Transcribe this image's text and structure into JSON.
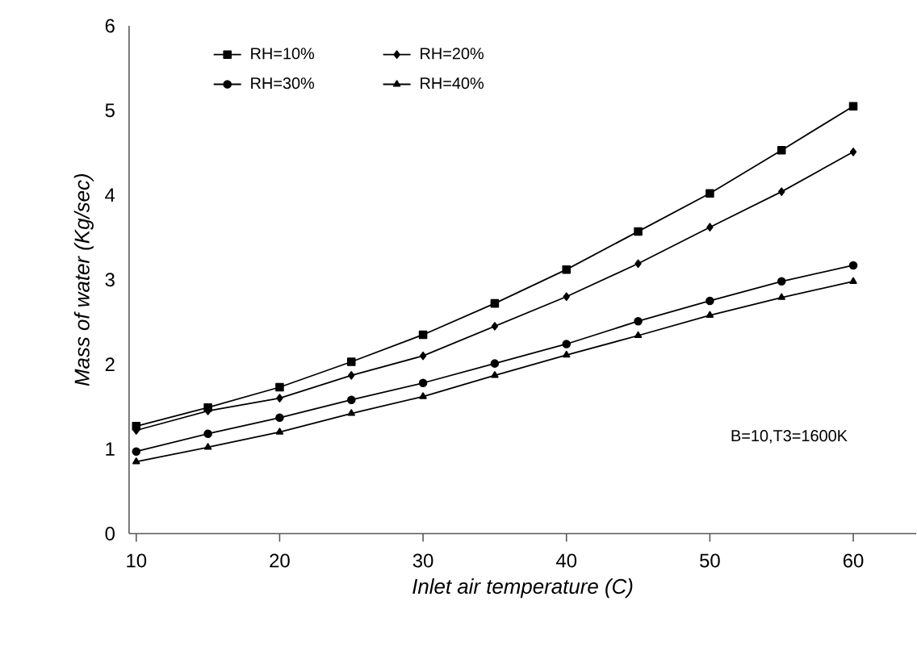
{
  "chart_data": {
    "type": "line",
    "xlabel": "Inlet air temperature (C)",
    "ylabel": "Mass of water (Kg/sec)",
    "x": [
      10,
      15,
      20,
      25,
      30,
      35,
      40,
      45,
      50,
      55,
      60
    ],
    "series": [
      {
        "name": "RH=10%",
        "color": "#000000",
        "marker": "square",
        "values": [
          1.27,
          1.49,
          1.73,
          2.03,
          2.35,
          2.72,
          3.12,
          3.57,
          4.02,
          4.53,
          5.05
        ]
      },
      {
        "name": "RH=20%",
        "color": "#000000",
        "marker": "diamond",
        "values": [
          1.22,
          1.45,
          1.6,
          1.87,
          2.1,
          2.45,
          2.8,
          3.19,
          3.62,
          4.04,
          4.51
        ]
      },
      {
        "name": "RH=30%",
        "color": "#000000",
        "marker": "circle",
        "values": [
          0.97,
          1.18,
          1.37,
          1.58,
          1.78,
          2.01,
          2.24,
          2.51,
          2.75,
          2.98,
          3.17
        ]
      },
      {
        "name": "RH=40%",
        "color": "#000000",
        "marker": "triangle",
        "values": [
          0.85,
          1.02,
          1.2,
          1.42,
          1.62,
          1.87,
          2.11,
          2.34,
          2.58,
          2.79,
          2.98
        ]
      }
    ],
    "xlim": [
      9.5,
      64.4
    ],
    "ylim": [
      0,
      6
    ],
    "xticks": [
      10,
      20,
      30,
      40,
      50,
      60
    ],
    "yticks": [
      0,
      1,
      2,
      3,
      4,
      5,
      6
    ],
    "legend": "top left",
    "grid": false,
    "line_style": "solid",
    "annotations": [
      "B=10,T3=1600K"
    ]
  }
}
